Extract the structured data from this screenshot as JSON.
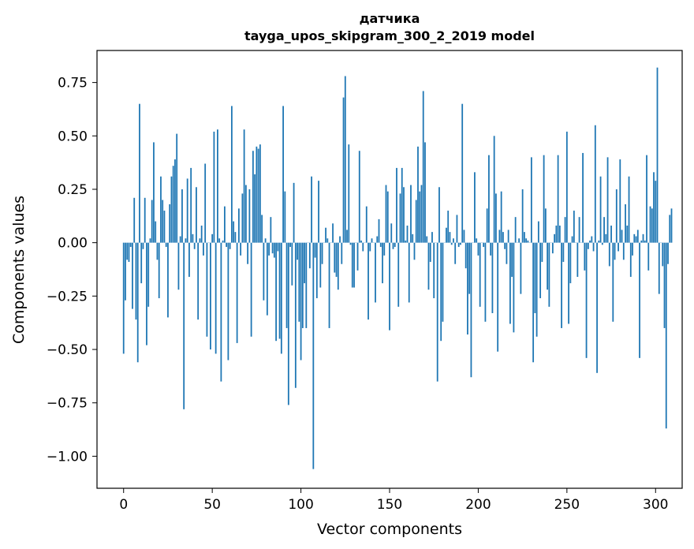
{
  "chart_data": {
    "type": "bar",
    "title_line1": "датчика",
    "title_line2": "tayga_upos_skipgram_300_2_2019 model",
    "xlabel": "Vector components",
    "ylabel": "Components values",
    "xlim": [
      -15,
      315
    ],
    "ylim": [
      -1.15,
      0.9
    ],
    "xticks": [
      0,
      50,
      100,
      150,
      200,
      250,
      300
    ],
    "yticks": [
      -1.0,
      -0.75,
      -0.5,
      -0.25,
      0.0,
      0.25,
      0.5,
      0.75
    ],
    "ytick_labels": [
      "−1.00",
      "−0.75",
      "−0.50",
      "−0.25",
      "0.00",
      "0.25",
      "0.50",
      "0.75"
    ],
    "bar_color": "#1f77b4",
    "grid": false,
    "values": [
      -0.52,
      -0.27,
      -0.08,
      -0.09,
      -0.02,
      -0.31,
      0.21,
      -0.36,
      -0.56,
      0.65,
      -0.19,
      -0.03,
      0.21,
      -0.48,
      -0.3,
      0.02,
      0.2,
      0.47,
      0.1,
      -0.08,
      -0.26,
      0.31,
      0.2,
      0.15,
      -0.02,
      -0.35,
      0.18,
      0.31,
      0.36,
      0.39,
      0.51,
      -0.22,
      0.03,
      0.25,
      -0.78,
      0.02,
      0.3,
      -0.16,
      0.35,
      0.04,
      -0.03,
      0.26,
      -0.36,
      0.02,
      0.08,
      -0.06,
      0.37,
      -0.44,
      0.0,
      -0.5,
      0.04,
      0.52,
      -0.52,
      0.53,
      0.02,
      -0.65,
      0.01,
      0.17,
      -0.02,
      -0.55,
      -0.03,
      0.64,
      0.1,
      0.05,
      -0.47,
      0.16,
      -0.06,
      0.23,
      0.53,
      0.27,
      -0.1,
      0.25,
      -0.44,
      0.43,
      0.32,
      0.45,
      0.44,
      0.46,
      0.13,
      -0.27,
      0.02,
      -0.34,
      -0.06,
      0.12,
      -0.05,
      -0.07,
      -0.46,
      -0.04,
      -0.45,
      -0.52,
      0.64,
      0.24,
      -0.4,
      -0.76,
      -0.02,
      -0.2,
      0.28,
      -0.68,
      -0.08,
      -0.37,
      -0.55,
      -0.4,
      -0.19,
      -0.4,
      0.0,
      -0.12,
      0.31,
      -1.06,
      -0.07,
      -0.26,
      0.29,
      -0.21,
      -0.1,
      0.0,
      0.07,
      0.02,
      -0.4,
      0.0,
      0.09,
      -0.14,
      -0.16,
      -0.22,
      0.03,
      -0.1,
      0.68,
      0.78,
      0.06,
      0.46,
      -0.01,
      -0.21,
      -0.21,
      0.0,
      -0.13,
      0.43,
      0.01,
      -0.04,
      0.0,
      0.17,
      -0.36,
      -0.04,
      0.02,
      0.0,
      -0.28,
      0.03,
      0.11,
      -0.02,
      -0.19,
      -0.06,
      0.27,
      0.24,
      -0.41,
      0.09,
      -0.03,
      -0.02,
      0.35,
      -0.3,
      0.23,
      0.35,
      0.26,
      0.01,
      0.08,
      -0.28,
      0.27,
      0.04,
      -0.08,
      0.2,
      0.45,
      0.24,
      0.27,
      0.71,
      0.47,
      0.03,
      -0.22,
      -0.09,
      0.05,
      -0.26,
      0.0,
      -0.65,
      0.26,
      -0.46,
      -0.37,
      0.0,
      0.07,
      0.15,
      0.05,
      -0.01,
      0.02,
      -0.1,
      0.13,
      -0.02,
      -0.01,
      0.65,
      0.06,
      -0.12,
      -0.43,
      -0.24,
      -0.63,
      0.0,
      0.33,
      0.02,
      -0.06,
      -0.3,
      0.0,
      -0.02,
      -0.37,
      0.16,
      0.41,
      -0.06,
      -0.33,
      0.5,
      0.23,
      -0.51,
      0.06,
      0.24,
      0.05,
      -0.03,
      -0.1,
      0.06,
      -0.38,
      -0.16,
      -0.42,
      0.12,
      0.0,
      0.02,
      -0.24,
      0.25,
      0.05,
      0.02,
      0.01,
      0.0,
      0.4,
      -0.56,
      -0.33,
      -0.44,
      0.1,
      -0.26,
      -0.09,
      0.41,
      0.16,
      -0.22,
      -0.3,
      0.0,
      -0.05,
      0.04,
      0.08,
      0.41,
      0.08,
      -0.4,
      -0.09,
      0.12,
      0.52,
      -0.38,
      -0.19,
      0.03,
      0.15,
      0.0,
      -0.16,
      0.12,
      0.0,
      0.42,
      -0.13,
      -0.54,
      -0.03,
      0.01,
      0.03,
      -0.04,
      0.55,
      -0.61,
      0.01,
      0.31,
      -0.01,
      0.12,
      0.04,
      0.4,
      -0.11,
      0.08,
      -0.37,
      -0.08,
      0.25,
      -0.04,
      0.39,
      0.06,
      -0.08,
      0.18,
      0.08,
      0.31,
      -0.16,
      -0.06,
      0.04,
      0.03,
      0.06,
      -0.54,
      0.01,
      0.04,
      0.01,
      0.41,
      -0.13,
      0.17,
      0.16,
      0.33,
      0.29,
      0.82,
      -0.24,
      0.0,
      -0.11,
      -0.4,
      -0.87,
      -0.1,
      0.13,
      0.16
    ]
  }
}
